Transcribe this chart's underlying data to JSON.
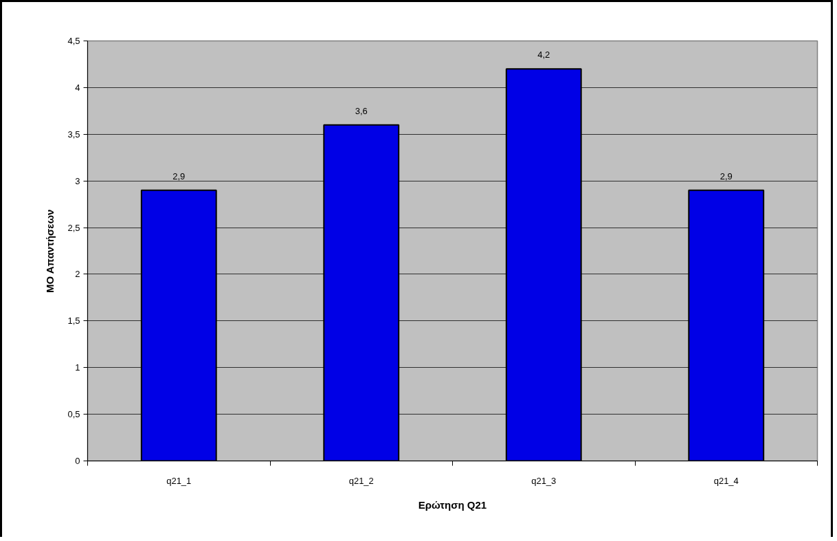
{
  "chart_data": {
    "type": "bar",
    "xlabel": "Ερώτηση Q21",
    "ylabel": "ΜΟ Απαντήσεων",
    "categories": [
      "q21_1",
      "q21_2",
      "q21_3",
      "q21_4"
    ],
    "values": [
      2.9,
      3.6,
      4.2,
      2.9
    ],
    "value_labels": [
      "2,9",
      "3,6",
      "4,2",
      "2,9"
    ],
    "color": "#0000e6",
    "ylim": [
      0,
      4.5
    ],
    "yticks": [
      0,
      {
        "value": 0.5,
        "label": "0,5"
      },
      1,
      {
        "value": 1.5,
        "label": "1,5"
      },
      2,
      {
        "value": 2.5,
        "label": "2,5"
      },
      3,
      {
        "value": 3.5,
        "label": "3,5"
      },
      4,
      {
        "value": 4.5,
        "label": "4,5"
      }
    ],
    "grid": "y"
  }
}
